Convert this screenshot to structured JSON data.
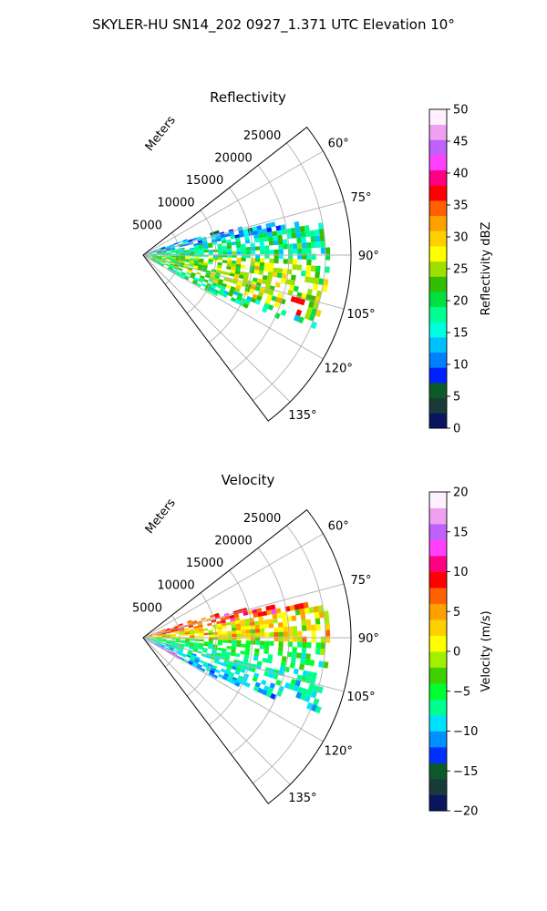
{
  "figure": {
    "title": "SKYLER-HU  SN14_202  0927_1.371 UTC Elevation 10°"
  },
  "chart_data": [
    {
      "type": "heatmap",
      "projection": "polar-sector",
      "title": "Reflectivity",
      "radial_label": "Meters",
      "radial_ticks": [
        5000,
        10000,
        15000,
        20000,
        25000
      ],
      "radial_tick_labels": [
        "5000",
        "10000",
        "15000",
        "20000",
        "25000"
      ],
      "rlim": [
        0,
        28500
      ],
      "theta_range_deg": [
        52,
        143
      ],
      "theta_ticks": [
        60,
        75,
        90,
        105,
        120,
        135
      ],
      "theta_tick_labels": [
        "60°",
        "75°",
        "90°",
        "105°",
        "120°",
        "135°"
      ],
      "grid": true,
      "colorbar": {
        "label": "Reflectivity dBZ",
        "range": [
          0,
          50
        ],
        "ticks": [
          0,
          5,
          10,
          15,
          20,
          25,
          30,
          35,
          40,
          45,
          50
        ],
        "tick_labels": [
          "0",
          "5",
          "10",
          "15",
          "20",
          "25",
          "30",
          "35",
          "40",
          "45",
          "50"
        ],
        "colors": [
          "#0a1560",
          "#1a3a3a",
          "#0a5a2a",
          "#0020ff",
          "#0080ff",
          "#00c0ff",
          "#00ffe0",
          "#00ff90",
          "#00e040",
          "#30c000",
          "#a0e000",
          "#ffff00",
          "#ffd000",
          "#ffa000",
          "#ff6000",
          "#ff0000",
          "#ff0080",
          "#ff40ff",
          "#c060ff",
          "#f0a0f0",
          "#fff0ff"
        ]
      },
      "echo": {
        "dominant_values": [
          15,
          30
        ],
        "core_value": 36,
        "core_location": {
          "r": 22500,
          "theta": 108
        },
        "weak_band_value": 6,
        "weak_band_location": {
          "r": 10000,
          "theta": 70
        }
      }
    },
    {
      "type": "heatmap",
      "projection": "polar-sector",
      "title": "Velocity",
      "radial_label": "Meters",
      "radial_ticks": [
        5000,
        10000,
        15000,
        20000,
        25000
      ],
      "radial_tick_labels": [
        "5000",
        "10000",
        "15000",
        "20000",
        "25000"
      ],
      "rlim": [
        0,
        28500
      ],
      "theta_range_deg": [
        52,
        143
      ],
      "theta_ticks": [
        60,
        75,
        90,
        105,
        120,
        135
      ],
      "theta_tick_labels": [
        "60°",
        "75°",
        "90°",
        "105°",
        "120°",
        "135°"
      ],
      "grid": true,
      "colorbar": {
        "label": "Velocity (m/s)",
        "range": [
          -20,
          20
        ],
        "ticks": [
          -20,
          -15,
          -10,
          -5,
          0,
          5,
          10,
          15,
          20
        ],
        "tick_labels": [
          "−20",
          "−15",
          "−10",
          "−5",
          "0",
          "5",
          "10",
          "15",
          "20"
        ],
        "colors": [
          "#0a1560",
          "#1a3a3a",
          "#0a5a2a",
          "#0030ff",
          "#0090ff",
          "#00e0ff",
          "#00ff90",
          "#00ff30",
          "#40d000",
          "#a0f000",
          "#ffff00",
          "#ffd000",
          "#ffa000",
          "#ff6000",
          "#ff0000",
          "#ff0080",
          "#ff40ff",
          "#c060ff",
          "#f0a0f0",
          "#fff0ff"
        ]
      },
      "echo": {
        "north_values": [
          0,
          10
        ],
        "south_values": [
          -12,
          -4
        ],
        "near_southern_edge_value": 15
      }
    }
  ]
}
